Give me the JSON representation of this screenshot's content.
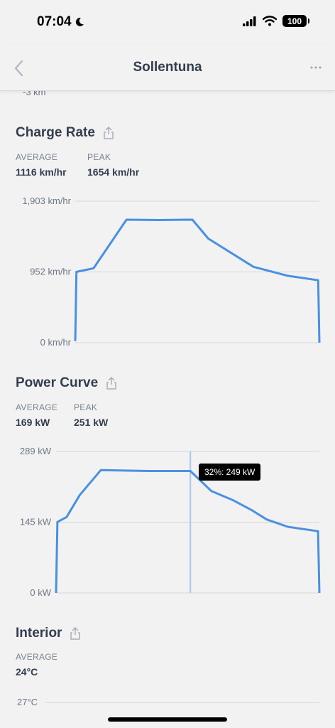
{
  "status": {
    "time": "07:04",
    "battery": "100"
  },
  "nav": {
    "title": "Sollentuna"
  },
  "previous_section": {
    "last_tick": "-3 km"
  },
  "charge_rate": {
    "title": "Charge Rate",
    "stats": [
      {
        "label": "AVERAGE",
        "value": "1116 km/hr"
      },
      {
        "label": "PEAK",
        "value": "1654 km/hr"
      }
    ]
  },
  "power_curve": {
    "title": "Power Curve",
    "stats": [
      {
        "label": "AVERAGE",
        "value": "169 kW"
      },
      {
        "label": "PEAK",
        "value": "251 kW"
      }
    ],
    "tooltip": "32%: 249 kW"
  },
  "interior": {
    "title": "Interior",
    "stats": [
      {
        "label": "AVERAGE",
        "value": "24°C"
      }
    ],
    "first_tick": "27°C"
  },
  "colors": {
    "line": "#4a90e2",
    "grid": "#d7d7d7",
    "cursor": "#a8c8ee"
  },
  "chart_data": [
    {
      "type": "line",
      "title": "Charge Rate",
      "ylabel": "",
      "xlabel": "",
      "ylim": [
        0,
        1903
      ],
      "yticks": [
        "0 km/hr",
        "952 km/hr",
        "1,903 km/hr"
      ],
      "xlim": [
        0,
        100
      ],
      "series": [
        {
          "x": [
            0,
            0.5,
            7.5,
            21,
            34.5,
            48,
            54.5,
            73,
            87,
            99.5,
            100
          ],
          "y": [
            20,
            952,
            1000,
            1654,
            1650,
            1654,
            1400,
            1020,
            900,
            840,
            0
          ]
        }
      ]
    },
    {
      "type": "line",
      "title": "Power Curve",
      "ylabel": "",
      "xlabel": "",
      "ylim": [
        0,
        289
      ],
      "yticks": [
        "0 kW",
        "145 kW",
        "289 kW"
      ],
      "xlim": [
        0,
        100
      ],
      "series": [
        {
          "x": [
            0,
            0.5,
            4,
            9,
            17,
            35,
            51,
            59,
            67,
            74,
            80,
            88,
            99.5,
            100
          ],
          "y": [
            0,
            145,
            155,
            200,
            251,
            249,
            249,
            208,
            190,
            170,
            150,
            135,
            126,
            0
          ]
        }
      ],
      "cursor_x": 51
    }
  ]
}
